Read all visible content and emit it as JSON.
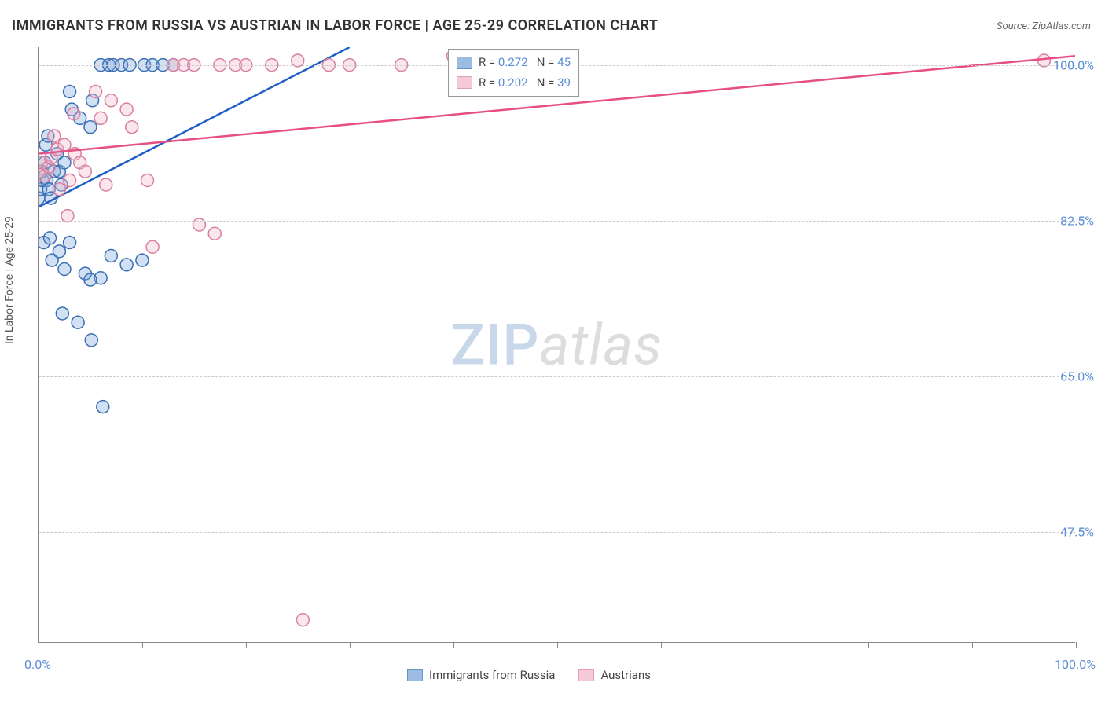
{
  "title": "IMMIGRANTS FROM RUSSIA VS AUSTRIAN IN LABOR FORCE | AGE 25-29 CORRELATION CHART",
  "source": "Source: ZipAtlas.com",
  "watermark": {
    "zip": "ZIP",
    "atlas": "atlas"
  },
  "chart": {
    "type": "scatter-regression",
    "background_color": "#ffffff",
    "grid_color": "#cccccc",
    "grid_style": "dashed",
    "axis_color": "#888888",
    "ylabel": "In Labor Force | Age 25-29",
    "ylabel_fontsize": 14,
    "ylabel_color": "#555555",
    "xlim": [
      0,
      100
    ],
    "ylim": [
      35,
      102
    ],
    "xtick_label_left": "0.0%",
    "xtick_label_right": "100.0%",
    "xtick_positions_pct": [
      10,
      20,
      30,
      40,
      50,
      60,
      70,
      80,
      90,
      100
    ],
    "ytick_labels": [
      {
        "value": 100.0,
        "label": "100.0%"
      },
      {
        "value": 82.5,
        "label": "82.5%"
      },
      {
        "value": 65.0,
        "label": "65.0%"
      },
      {
        "value": 47.5,
        "label": "47.5%"
      }
    ],
    "tick_label_color": "#5b8dd6",
    "tick_label_fontsize": 16,
    "marker_radius": 8,
    "marker_stroke_width": 1.5,
    "marker_fill_opacity": 0.35,
    "regression_line_width": 2.5,
    "series": [
      {
        "name": "Immigrants from Russia",
        "color_stroke": "#3b6fb5",
        "color_fill": "#7ba6db",
        "color_line": "#1f5fc4",
        "R": "0.272",
        "N": "45",
        "regression": {
          "x0": 0,
          "y0": 84,
          "x1": 30,
          "y1": 102
        },
        "points": [
          [
            0,
            85
          ],
          [
            0.2,
            86
          ],
          [
            0.4,
            87
          ],
          [
            0.3,
            88
          ],
          [
            0.8,
            87
          ],
          [
            1.0,
            86
          ],
          [
            1.2,
            85
          ],
          [
            0.6,
            89
          ],
          [
            1.5,
            88
          ],
          [
            0.7,
            91
          ],
          [
            0.9,
            92
          ],
          [
            1.8,
            90
          ],
          [
            2.0,
            88
          ],
          [
            2.2,
            86.5
          ],
          [
            2.5,
            89
          ],
          [
            3.2,
            95
          ],
          [
            3.0,
            97
          ],
          [
            4.0,
            94
          ],
          [
            5.0,
            93
          ],
          [
            5.2,
            96
          ],
          [
            0.5,
            80
          ],
          [
            1.1,
            80.5
          ],
          [
            1.3,
            78
          ],
          [
            2.0,
            79
          ],
          [
            2.5,
            77
          ],
          [
            3.0,
            80
          ],
          [
            7.0,
            78.5
          ],
          [
            6.0,
            76
          ],
          [
            4.5,
            76.5
          ],
          [
            8.5,
            77.5
          ],
          [
            10,
            78
          ],
          [
            2.3,
            72
          ],
          [
            3.8,
            71
          ],
          [
            5.0,
            75.8
          ],
          [
            5.1,
            69
          ],
          [
            6.2,
            61.5
          ],
          [
            6.0,
            100
          ],
          [
            6.8,
            100
          ],
          [
            7.2,
            100
          ],
          [
            8.0,
            100
          ],
          [
            8.8,
            100
          ],
          [
            10.2,
            100
          ],
          [
            11,
            100
          ],
          [
            12,
            100
          ],
          [
            13,
            100
          ]
        ]
      },
      {
        "name": "Austrians",
        "color_stroke": "#d97fa0",
        "color_fill": "#f2b8cc",
        "color_line": "#e74e86",
        "R": "0.202",
        "N": "39",
        "regression": {
          "x0": 0,
          "y0": 90,
          "x1": 100,
          "y1": 101
        },
        "points": [
          [
            0,
            88
          ],
          [
            0.3,
            89
          ],
          [
            0.6,
            87.5
          ],
          [
            1.0,
            88.5
          ],
          [
            1.2,
            89.5
          ],
          [
            1.5,
            92
          ],
          [
            1.8,
            90.5
          ],
          [
            2.0,
            86
          ],
          [
            2.5,
            91
          ],
          [
            3.0,
            87
          ],
          [
            3.5,
            90
          ],
          [
            4.0,
            89
          ],
          [
            5.5,
            97
          ],
          [
            6.0,
            94
          ],
          [
            7.0,
            96
          ],
          [
            8.5,
            95
          ],
          [
            9.0,
            93
          ],
          [
            2.8,
            83
          ],
          [
            3.4,
            94.5
          ],
          [
            4.5,
            88
          ],
          [
            6.5,
            86.5
          ],
          [
            10.5,
            87
          ],
          [
            11,
            79.5
          ],
          [
            15.5,
            82
          ],
          [
            17,
            81
          ],
          [
            13,
            100
          ],
          [
            14,
            100
          ],
          [
            15,
            100
          ],
          [
            17.5,
            100
          ],
          [
            19,
            100
          ],
          [
            20,
            100
          ],
          [
            22.5,
            100
          ],
          [
            25,
            100.5
          ],
          [
            28,
            100
          ],
          [
            30,
            100
          ],
          [
            35,
            100
          ],
          [
            97,
            100.5
          ],
          [
            25.5,
            37.5
          ],
          [
            40,
            101
          ]
        ]
      }
    ]
  },
  "legend_box": {
    "border_color": "#999999",
    "background": "#ffffff",
    "R_prefix": "R = ",
    "N_prefix": "N = ",
    "value_color": "#5b8dd6",
    "label_color": "#444444"
  },
  "bottom_legend": {
    "text_color": "#444444"
  }
}
